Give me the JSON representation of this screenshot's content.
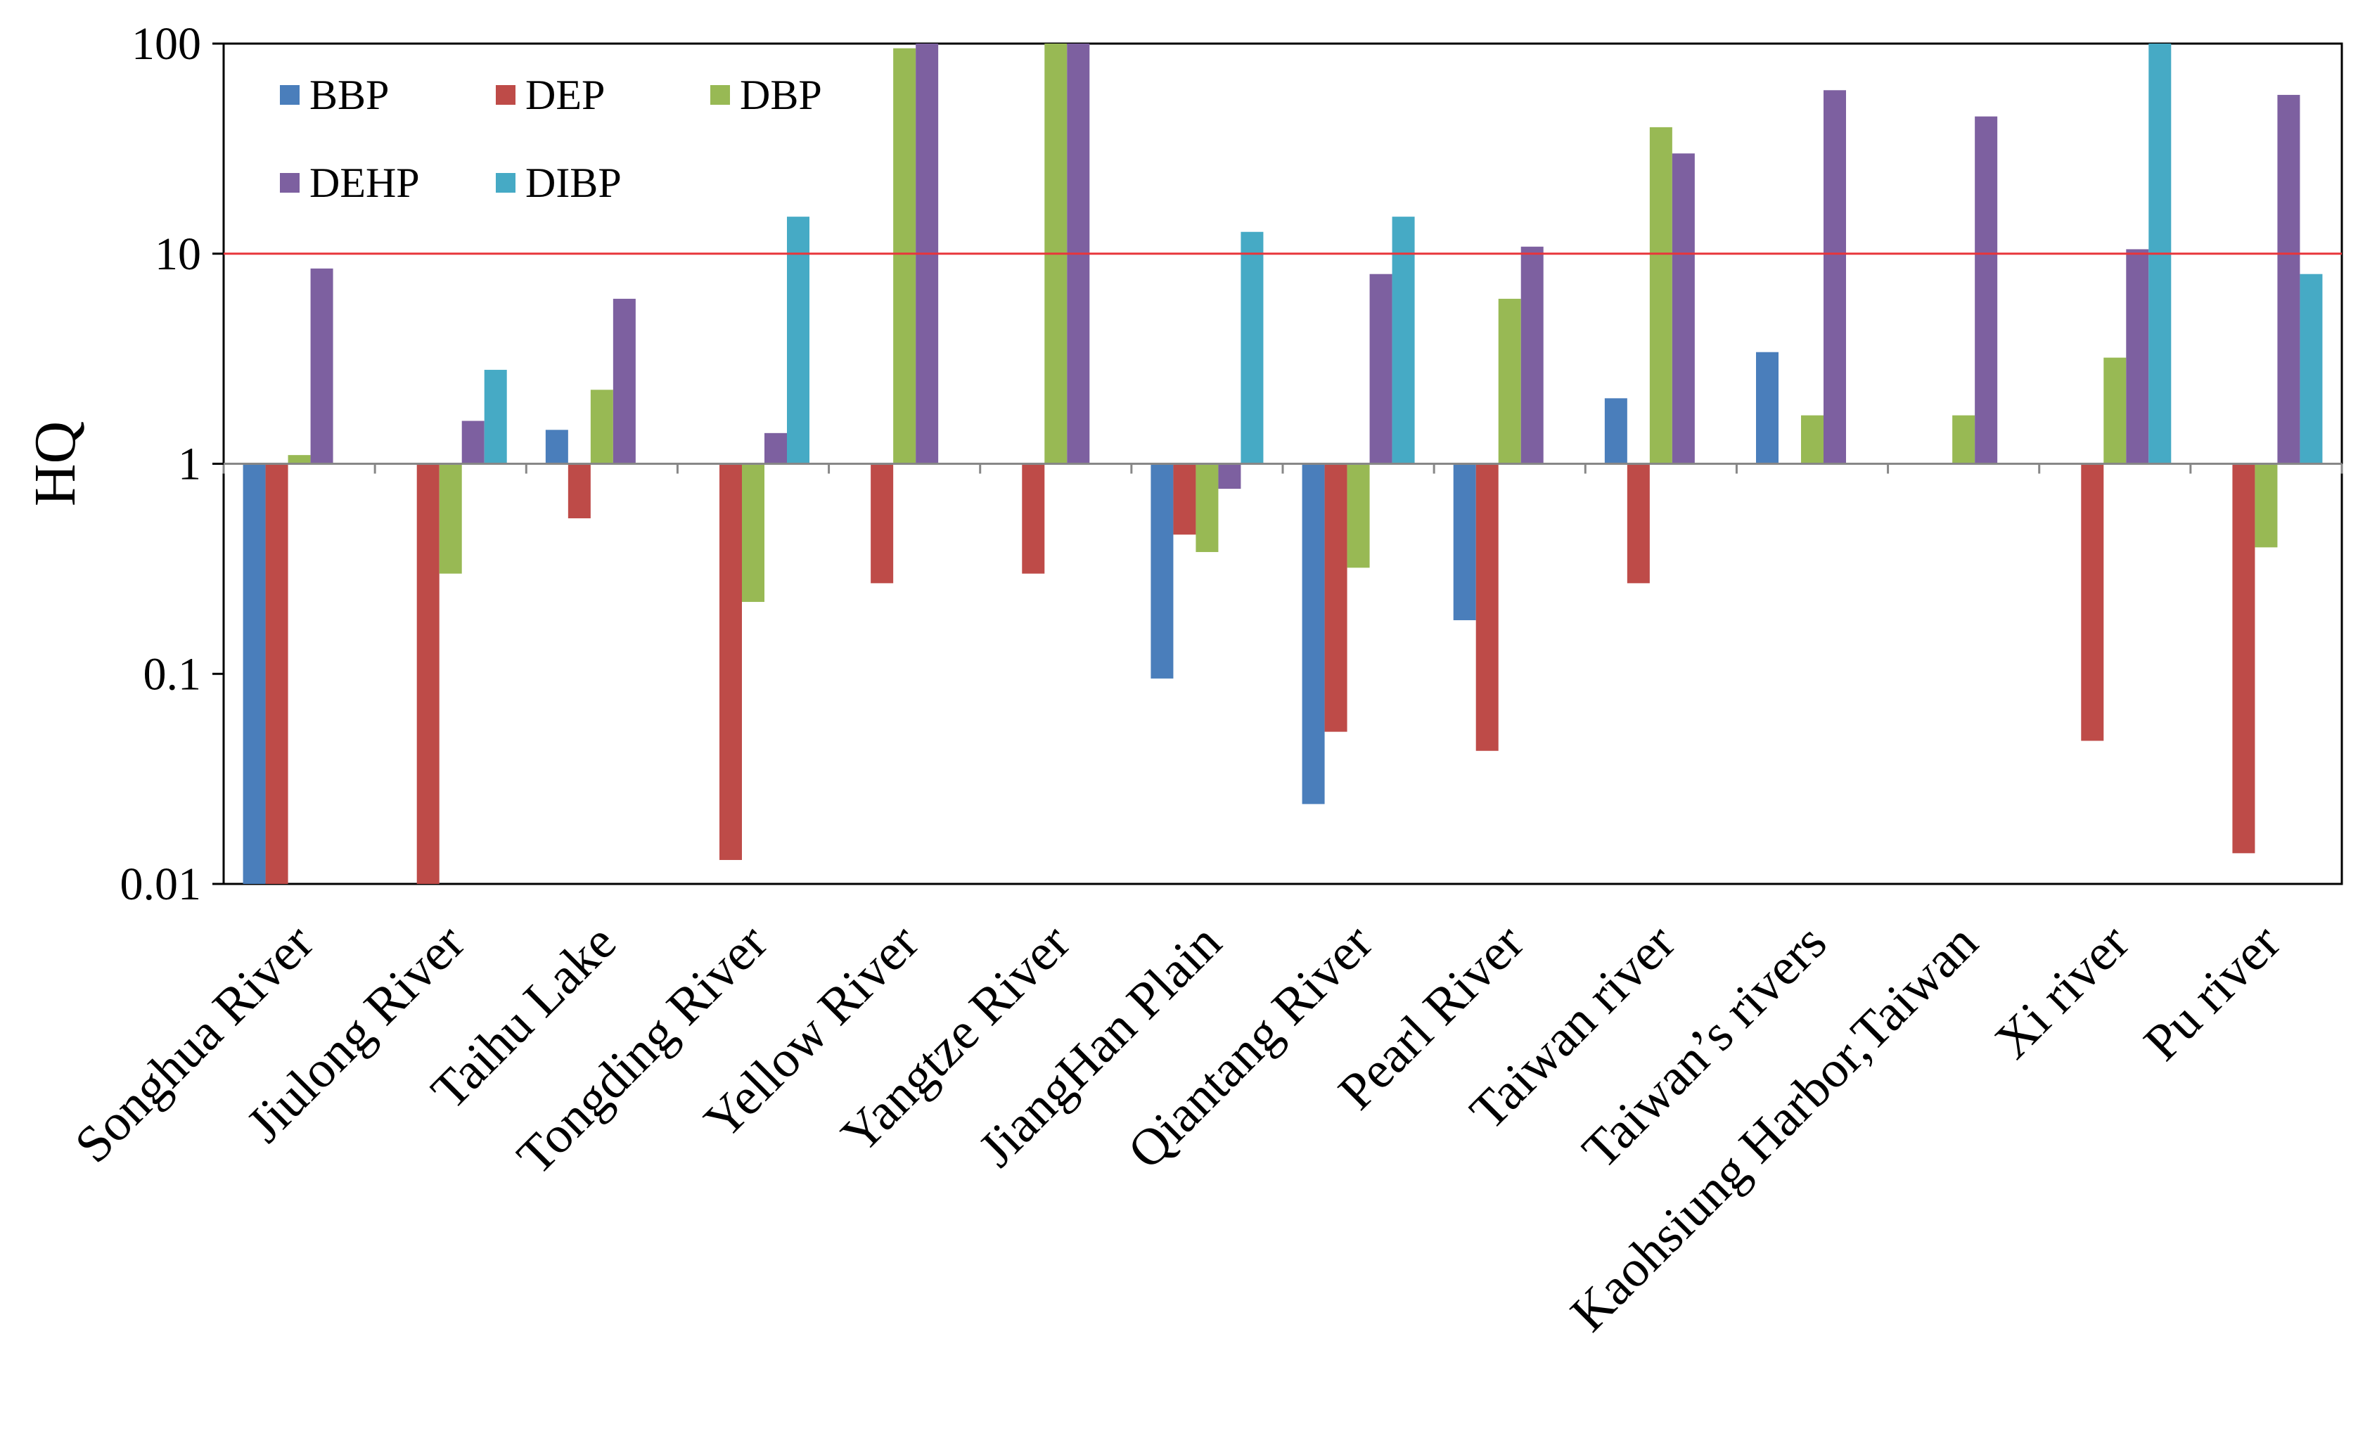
{
  "chart_data": {
    "type": "bar",
    "title": "",
    "xlabel": "",
    "ylabel": "HQ",
    "yscale": "log",
    "ylim": [
      0.01,
      100
    ],
    "yticks": [
      "0.01",
      "0.1",
      "1",
      "10",
      "100"
    ],
    "baseline": 1,
    "reference_line": {
      "value": 10,
      "color": "#e8363b"
    },
    "legend_position": "top-left",
    "categories": [
      "Songhua River",
      "Jiulong River",
      "Taihu Lake",
      "Tongding River",
      "Yellow River",
      "Yangtze River",
      "JiangHan Plain",
      "Qiantang River",
      "Pearl River",
      "Taiwan river",
      "Taiwan’s rivers",
      "Kaohsiung Harbor,Taiwan",
      "Xi river",
      "Pu river"
    ],
    "series": [
      {
        "name": "BBP",
        "color": "#4a7ebb",
        "values": [
          0.01,
          null,
          1.45,
          null,
          null,
          null,
          0.095,
          0.024,
          0.18,
          2.05,
          3.4,
          null,
          null,
          null
        ]
      },
      {
        "name": "DEP",
        "color": "#be4b48",
        "values": [
          0.01,
          0.01,
          0.55,
          0.013,
          0.27,
          0.3,
          0.46,
          0.053,
          0.043,
          0.27,
          null,
          null,
          0.048,
          0.014
        ]
      },
      {
        "name": "DBP",
        "color": "#98b954",
        "values": [
          1.1,
          0.3,
          2.25,
          0.22,
          95,
          100,
          0.38,
          0.32,
          6.1,
          40,
          1.7,
          1.7,
          3.2,
          0.4
        ]
      },
      {
        "name": "DEHP",
        "color": "#7d60a0",
        "values": [
          8.5,
          1.6,
          6.1,
          1.4,
          100,
          100,
          0.76,
          8.0,
          10.8,
          30,
          60,
          45,
          10.5,
          57
        ]
      },
      {
        "name": "DIBP",
        "color": "#46aac5",
        "values": [
          null,
          2.8,
          null,
          15,
          null,
          null,
          12.7,
          15,
          null,
          null,
          null,
          null,
          100,
          8.0
        ]
      }
    ]
  }
}
